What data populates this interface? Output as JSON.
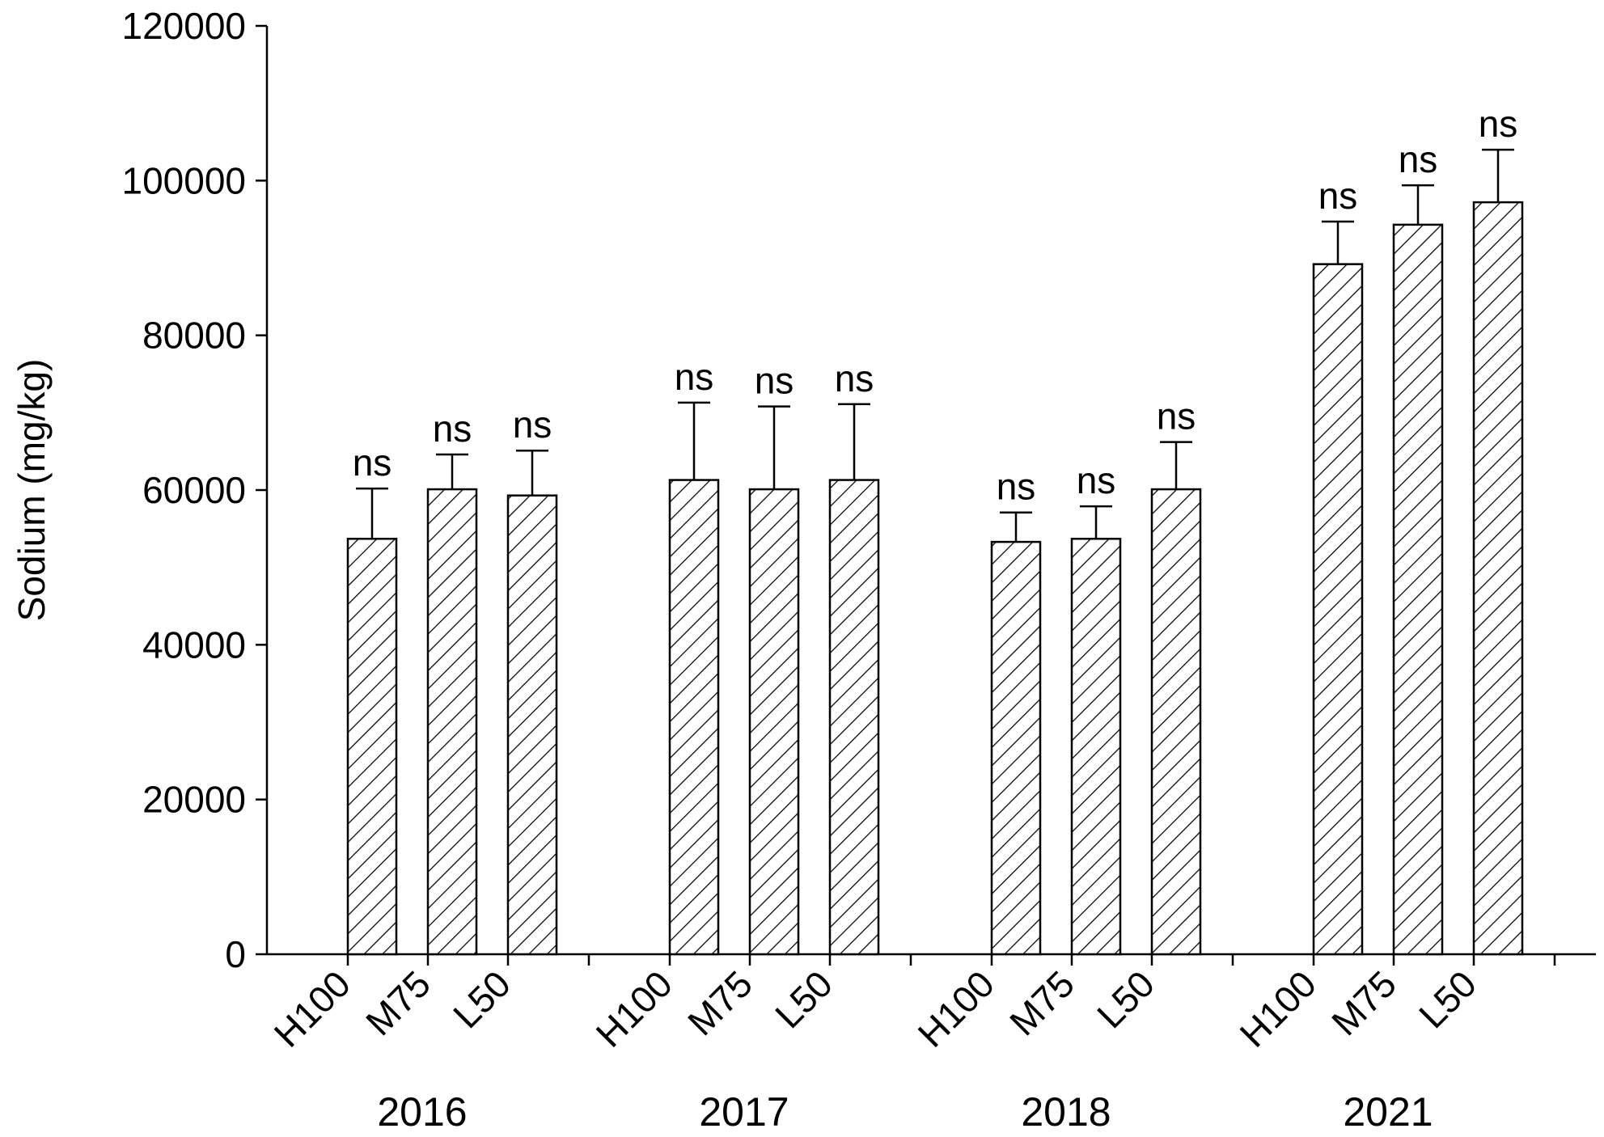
{
  "chart_data": {
    "type": "grouped-bar-error",
    "ylabel": "Sodium (mg/kg)",
    "ylim": [
      0,
      120000
    ],
    "yticks": [
      0,
      20000,
      40000,
      60000,
      80000,
      100000,
      120000
    ],
    "color": "#000000",
    "hatch": true,
    "groups": [
      {
        "name": "2016",
        "categories": [
          "H100",
          "M75",
          "L50"
        ],
        "values": [
          53700,
          60100,
          59300
        ],
        "errors": [
          6500,
          4500,
          5800
        ],
        "labels": [
          "ns",
          "ns",
          "ns"
        ]
      },
      {
        "name": "2017",
        "categories": [
          "H100",
          "M75",
          "L50"
        ],
        "values": [
          61300,
          60100,
          61300
        ],
        "errors": [
          10000,
          10700,
          9800
        ],
        "labels": [
          "ns",
          "ns",
          "ns"
        ]
      },
      {
        "name": "2018",
        "categories": [
          "H100",
          "M75",
          "L50"
        ],
        "values": [
          53300,
          53700,
          60100
        ],
        "errors": [
          3800,
          4200,
          6100
        ],
        "labels": [
          "ns",
          "ns",
          "ns"
        ]
      },
      {
        "name": "2021",
        "categories": [
          "H100",
          "M75",
          "L50"
        ],
        "values": [
          89200,
          94300,
          97200
        ],
        "errors": [
          5500,
          5100,
          6800
        ],
        "labels": [
          "ns",
          "ns",
          "ns"
        ]
      }
    ]
  }
}
